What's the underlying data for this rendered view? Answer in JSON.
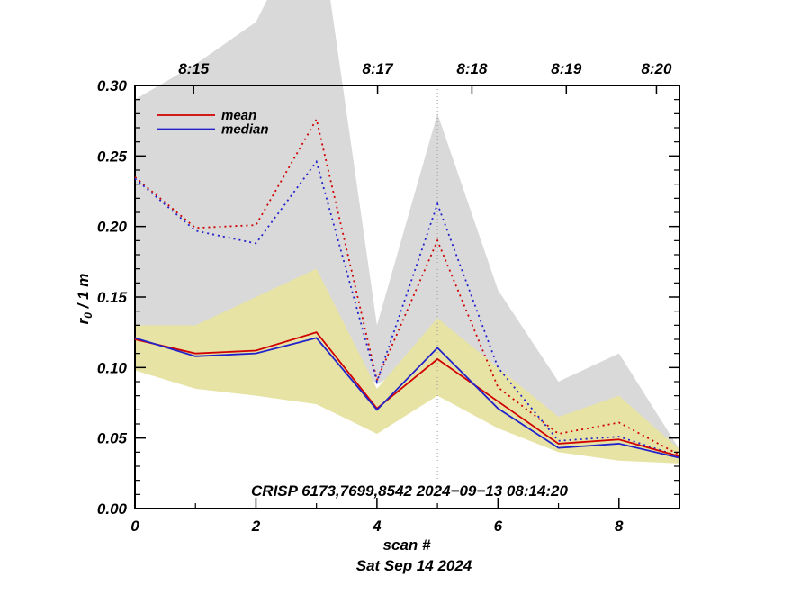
{
  "chart_data": {
    "type": "line",
    "title": "",
    "xlabel": "scan #",
    "footer_date": "Sat Sep 14 2024",
    "annotation": "CRISP 6173,7699,8542 2024−09−13 08:14:20",
    "ylabel": {
      "base": "r",
      "sub": "0",
      "rest": " / 1 m"
    },
    "xlim": [
      0,
      9
    ],
    "ylim": [
      0.0,
      0.3
    ],
    "x_major_ticks": [
      0,
      2,
      4,
      6,
      8
    ],
    "x_major_tick_labels": [
      "0",
      "2",
      "4",
      "6",
      "8"
    ],
    "x_minor_ticks": [
      1,
      3,
      5,
      7,
      9
    ],
    "y_major_ticks": [
      0.0,
      0.05,
      0.1,
      0.15,
      0.2,
      0.25,
      0.3
    ],
    "y_tick_labels": [
      "0.00",
      "0.05",
      "0.10",
      "0.15",
      "0.20",
      "0.25",
      "0.30"
    ],
    "y_minor_step": 0.01,
    "top_axis_ticks": [
      {
        "pos": 0.97,
        "label": "8:15"
      },
      {
        "pos": 4.01,
        "label": "8:17"
      },
      {
        "pos": 5.57,
        "label": "8:18"
      },
      {
        "pos": 7.13,
        "label": "8:19"
      },
      {
        "pos": 8.62,
        "label": "8:20"
      }
    ],
    "vline_x": 5,
    "x": [
      0,
      1,
      2,
      3,
      4,
      5,
      6,
      7,
      8,
      9
    ],
    "bands": [
      {
        "name": "gray-band",
        "color": "#d9d9d9",
        "upper": [
          0.29,
          0.315,
          0.345,
          0.43,
          0.13,
          0.28,
          0.155,
          0.09,
          0.11,
          0.042
        ],
        "lower": [
          0.12,
          0.115,
          0.115,
          0.13,
          0.088,
          0.115,
          0.075,
          0.048,
          0.048,
          0.036
        ]
      },
      {
        "name": "yellow-band",
        "color": "#e7e3a4",
        "upper": [
          0.13,
          0.13,
          0.15,
          0.17,
          0.085,
          0.135,
          0.1,
          0.065,
          0.08,
          0.042
        ],
        "lower": [
          0.098,
          0.085,
          0.08,
          0.074,
          0.053,
          0.08,
          0.057,
          0.04,
          0.034,
          0.032
        ]
      }
    ],
    "series": [
      {
        "name": "mean-dotted",
        "color": "#d00000",
        "style": "dotted",
        "values": [
          0.235,
          0.199,
          0.201,
          0.276,
          0.091,
          0.19,
          0.086,
          0.053,
          0.061,
          0.038
        ]
      },
      {
        "name": "median-dotted",
        "color": "#2222cc",
        "style": "dotted",
        "values": [
          0.234,
          0.197,
          0.188,
          0.246,
          0.09,
          0.216,
          0.1,
          0.048,
          0.051,
          0.037
        ]
      },
      {
        "name": "mean",
        "color": "#d00000",
        "style": "solid",
        "values": [
          0.12,
          0.11,
          0.112,
          0.125,
          0.071,
          0.106,
          0.076,
          0.046,
          0.049,
          0.037
        ]
      },
      {
        "name": "median",
        "color": "#2222cc",
        "style": "solid",
        "values": [
          0.121,
          0.108,
          0.11,
          0.121,
          0.07,
          0.114,
          0.071,
          0.043,
          0.046,
          0.036
        ]
      }
    ],
    "legend": {
      "position": "top-left",
      "entries": [
        {
          "label": "mean",
          "color": "#d00000"
        },
        {
          "label": "median",
          "color": "#2222cc"
        }
      ]
    },
    "colors": {
      "gray_band": "#d9d9d9",
      "yellow_band": "#e7e3a4",
      "axis": "#000000",
      "vline": "#999999",
      "red": "#d00000",
      "blue": "#2222cc"
    }
  }
}
